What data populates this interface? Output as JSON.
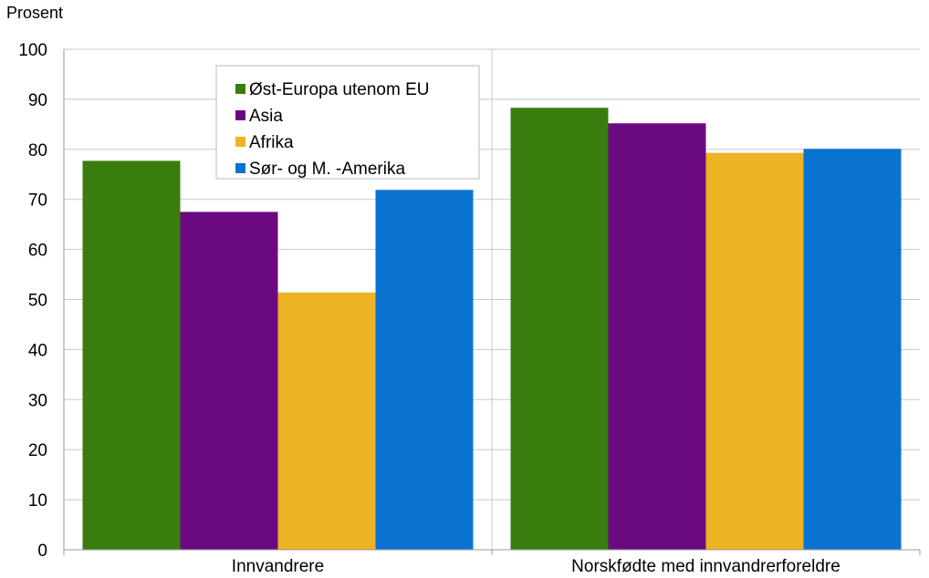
{
  "chart_data": {
    "type": "bar",
    "title": "",
    "xlabel": "",
    "ylabel": "Prosent",
    "ylim": [
      0,
      100
    ],
    "yticks": [
      0,
      10,
      20,
      30,
      40,
      50,
      60,
      70,
      80,
      90,
      100
    ],
    "grid": true,
    "legend_position": "top-left",
    "categories": [
      "Innvandrere",
      "Norskfødte med innvandrerforeldre"
    ],
    "series": [
      {
        "name": "Øst-Europa utenom EU",
        "color": "#3a7d0f",
        "values": [
          77.7,
          88.3
        ]
      },
      {
        "name": "Asia",
        "color": "#6b0a80",
        "values": [
          67.5,
          85.2
        ]
      },
      {
        "name": "Afrika",
        "color": "#edb324",
        "values": [
          51.4,
          79.3
        ]
      },
      {
        "name": "Sør- og M. -Amerika",
        "color": "#0a73d2",
        "values": [
          71.9,
          80.1
        ]
      }
    ]
  }
}
